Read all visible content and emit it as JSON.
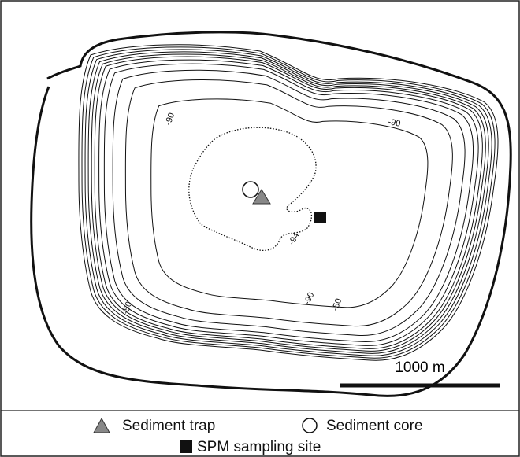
{
  "map": {
    "contour_labels": [
      "-90",
      "-90",
      "-94",
      "-90",
      "-50",
      "-50"
    ],
    "scale_bar": {
      "label": "1000 m"
    },
    "legend": {
      "items": [
        "Sediment trap",
        "Sediment core",
        "SPM sampling site"
      ]
    }
  }
}
